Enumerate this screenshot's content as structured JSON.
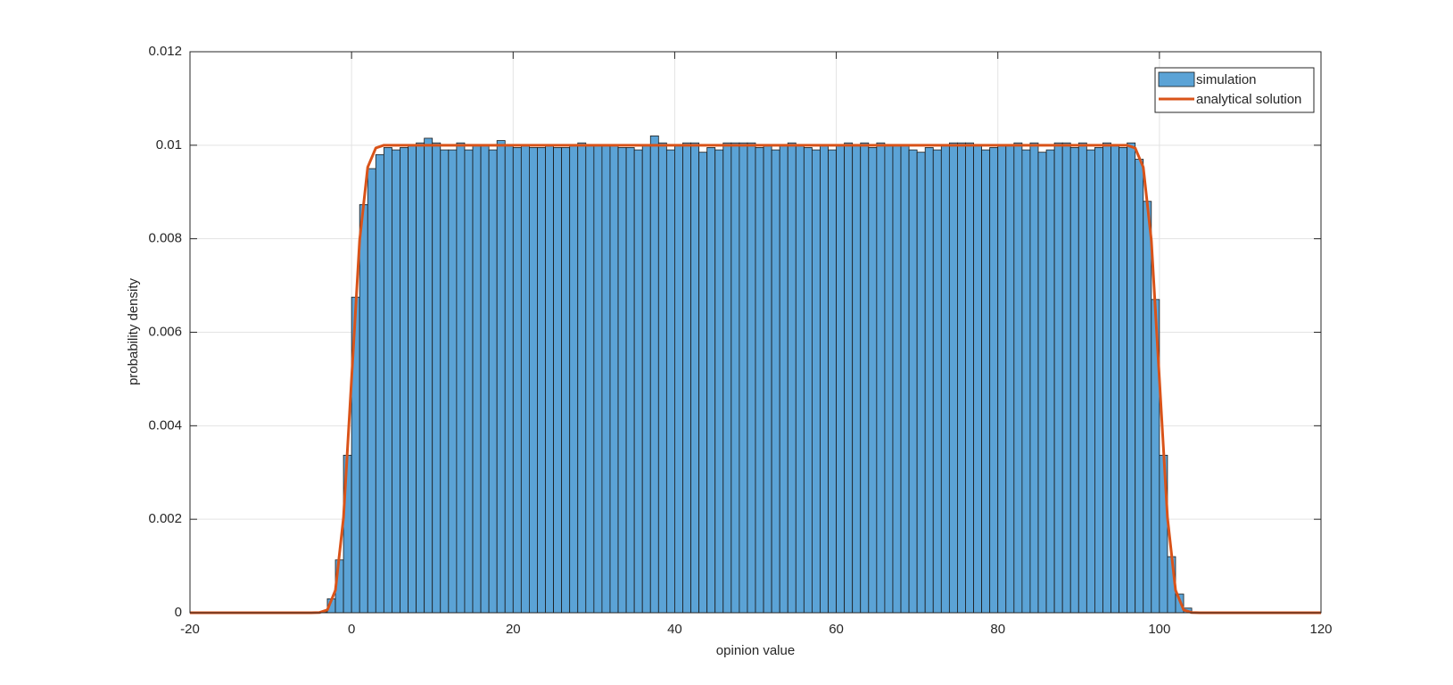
{
  "chart_data": {
    "type": "histogram",
    "xlabel": "opinion value",
    "ylabel": "probability density",
    "xlim": [
      -20,
      120
    ],
    "xticks": [
      -20,
      0,
      20,
      40,
      60,
      80,
      100,
      120
    ],
    "ylim": [
      0,
      0.012
    ],
    "yticks": [
      0,
      0.002,
      0.004,
      0.006,
      0.008,
      0.01,
      0.012
    ],
    "grid": true,
    "legend": "upper right",
    "series": [
      {
        "name": "simulation",
        "type": "histogram",
        "color": "#5ba3d6",
        "bins": [
          -4,
          -3,
          -2,
          -1,
          0,
          1,
          2,
          3,
          4,
          5,
          6,
          7,
          8,
          9,
          10,
          11,
          12,
          13,
          14,
          15,
          16,
          17,
          18,
          19,
          20,
          21,
          22,
          23,
          24,
          25,
          26,
          27,
          28,
          29,
          30,
          31,
          32,
          33,
          34,
          35,
          36,
          37,
          38,
          39,
          40,
          41,
          42,
          43,
          44,
          45,
          46,
          47,
          48,
          49,
          50,
          51,
          52,
          53,
          54,
          55,
          56,
          57,
          58,
          59,
          60,
          61,
          62,
          63,
          64,
          65,
          66,
          67,
          68,
          69,
          70,
          71,
          72,
          73,
          74,
          75,
          76,
          77,
          78,
          79,
          80,
          81,
          82,
          83,
          84,
          85,
          86,
          87,
          88,
          89,
          90,
          91,
          92,
          93,
          94,
          95,
          96,
          97,
          98,
          99,
          100,
          101,
          102,
          103,
          104
        ],
        "values": [
          2e-05,
          0.0003,
          0.00113,
          0.00337,
          0.00675,
          0.00873,
          0.0095,
          0.0098,
          0.00995,
          0.0099,
          0.00995,
          0.01,
          0.01005,
          0.01015,
          0.01005,
          0.0099,
          0.0099,
          0.01005,
          0.0099,
          0.01,
          0.01,
          0.0099,
          0.0101,
          0.01,
          0.00995,
          0.01,
          0.00995,
          0.00995,
          0.01,
          0.00995,
          0.00995,
          0.01,
          0.01005,
          0.01,
          0.01,
          0.01,
          0.01,
          0.00995,
          0.00995,
          0.0099,
          0.01,
          0.0102,
          0.01005,
          0.0099,
          0.01,
          0.01005,
          0.01005,
          0.00985,
          0.00995,
          0.0099,
          0.01005,
          0.01005,
          0.01005,
          0.01005,
          0.00995,
          0.01,
          0.0099,
          0.01,
          0.01005,
          0.01,
          0.00995,
          0.0099,
          0.01,
          0.0099,
          0.01,
          0.01005,
          0.01,
          0.01005,
          0.00995,
          0.01005,
          0.01,
          0.01,
          0.01,
          0.0099,
          0.00985,
          0.00995,
          0.0099,
          0.01,
          0.01005,
          0.01005,
          0.01005,
          0.01,
          0.0099,
          0.00995,
          0.01,
          0.01,
          0.01005,
          0.0099,
          0.01005,
          0.00985,
          0.0099,
          0.01005,
          0.01005,
          0.00995,
          0.01005,
          0.0099,
          0.00995,
          0.01005,
          0.01,
          0.00995,
          0.01005,
          0.0097,
          0.0088,
          0.0067,
          0.00337,
          0.0012,
          0.0004,
          0.0001
        ]
      },
      {
        "name": "analytical solution",
        "type": "line",
        "color": "#d95319",
        "x": [
          -20,
          -10,
          -6,
          -5,
          -4,
          -3,
          -2,
          -1,
          0,
          1,
          2,
          3,
          4,
          5,
          10,
          20,
          30,
          40,
          50,
          60,
          70,
          80,
          90,
          95,
          96,
          97,
          98,
          99,
          100,
          101,
          102,
          103,
          104,
          105,
          106,
          110,
          120
        ],
        "values": [
          0,
          0,
          0,
          0,
          4e-06,
          6e-05,
          0.00048,
          0.00203,
          0.005,
          0.00797,
          0.00953,
          0.00994,
          0.01,
          0.01,
          0.01,
          0.01,
          0.01,
          0.01,
          0.01,
          0.01,
          0.01,
          0.01,
          0.01,
          0.01,
          0.01,
          0.00994,
          0.00953,
          0.00797,
          0.005,
          0.00203,
          0.00048,
          6e-05,
          4e-06,
          0,
          0,
          0,
          0
        ]
      }
    ]
  }
}
